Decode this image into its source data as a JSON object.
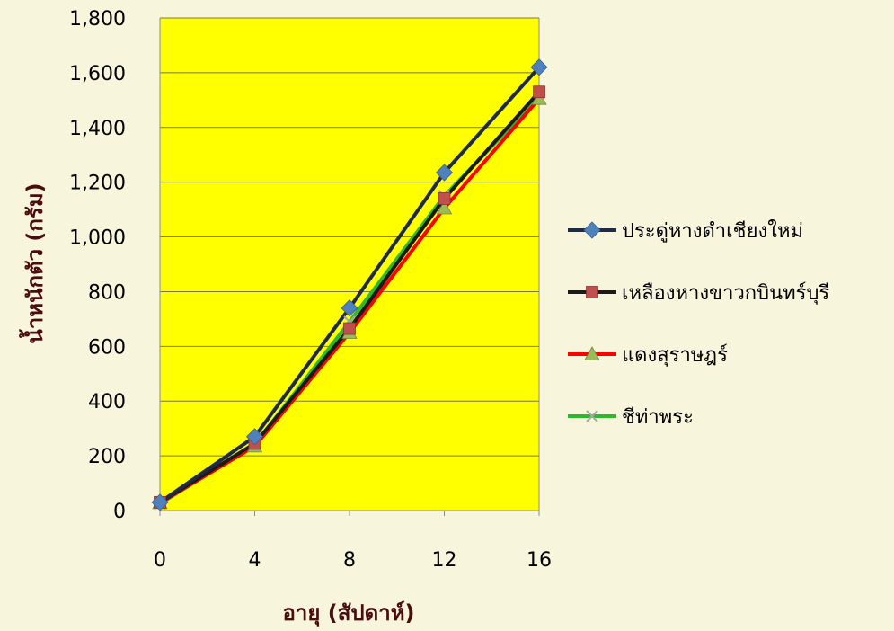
{
  "colors": {
    "background": "#f7f6dc",
    "plot_area": "#ffff00",
    "gridline": "#7a7a40",
    "axis_title": "#4a0d0d"
  },
  "chart_data": {
    "type": "line",
    "x": [
      0,
      4,
      8,
      12,
      16
    ],
    "xlabel": "อายุ (สัปดาห์)",
    "ylabel": "น้ำหนักตัว (กรัม)",
    "xlim": [
      0,
      16
    ],
    "ylim": [
      0,
      1800
    ],
    "yticks": [
      0,
      200,
      400,
      600,
      800,
      1000,
      1200,
      1400,
      1600,
      1800
    ],
    "ytick_labels": [
      "0",
      "200",
      "400",
      "600",
      "800",
      "1,000",
      "1,200",
      "1,400",
      "1,600",
      "1,800"
    ],
    "xtick_labels": [
      "0",
      "4",
      "8",
      "12",
      "16"
    ],
    "grid": true,
    "plot_background": "#ffff00",
    "legend_position": "right",
    "series": [
      {
        "name": "ประดู่หางดำเชียงใหม่",
        "values": [
          30,
          270,
          740,
          1235,
          1620
        ],
        "line_color": "#1f2a44",
        "marker": "diamond",
        "marker_color": "#4f81bd"
      },
      {
        "name": "เหลืองหางขาวกบินทร์บุรี",
        "values": [
          30,
          245,
          665,
          1140,
          1530
        ],
        "line_color": "#1a1a1a",
        "marker": "square",
        "marker_color": "#c0504d"
      },
      {
        "name": "แดงสุราษฎร์",
        "values": [
          28,
          235,
          650,
          1105,
          1505
        ],
        "line_color": "#ff0000",
        "marker": "triangle",
        "marker_color": "#9bbb59"
      },
      {
        "name": "ชีท่าพระ",
        "values": [
          25,
          240,
          690,
          1150,
          1510
        ],
        "line_color": "#2eb82e",
        "marker": "x",
        "marker_color": "#a6a6a6"
      }
    ]
  }
}
